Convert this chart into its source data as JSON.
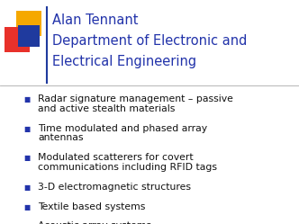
{
  "background_color": "#ffffff",
  "title_line1": "Alan Tennant",
  "title_line2": "Department of Electronic and",
  "title_line3": "Electrical Engineering",
  "title_color": "#2233aa",
  "title_fontsize": 10.5,
  "bullet_items": [
    [
      "Radar signature management – passive",
      "and active stealth materials"
    ],
    [
      "Time modulated and phased array",
      "antennas"
    ],
    [
      "Modulated scatterers for covert",
      "communications including RFID tags"
    ],
    [
      "3-D electromagnetic structures"
    ],
    [
      "Textile based systems"
    ],
    [
      "Acoustic array systems"
    ]
  ],
  "bullet_color": "#111111",
  "bullet_fontsize": 7.8,
  "bullet_marker_color": "#2233aa",
  "accent_red": "#e8312a",
  "accent_yellow": "#f5a800",
  "accent_blue": "#1f3a9e",
  "divider_color": "#1f3a9e"
}
